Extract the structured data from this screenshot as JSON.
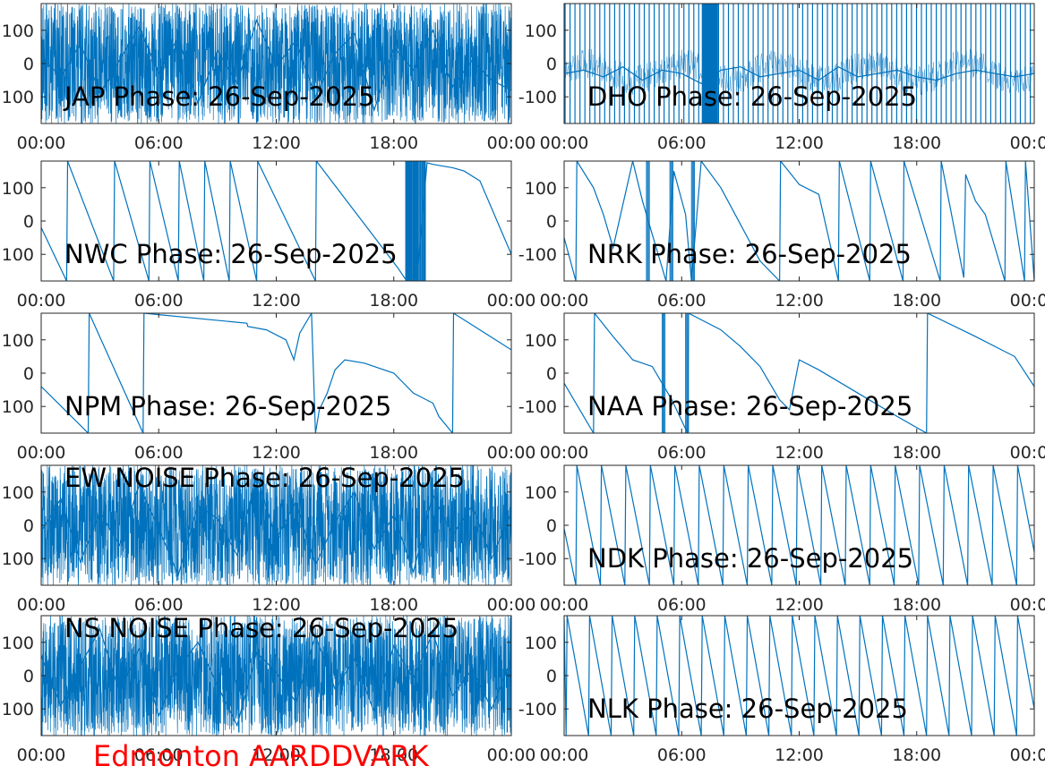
{
  "caption": {
    "text": "Edmonton AARDDVARK",
    "color": "#ff0000"
  },
  "style": {
    "line_color": "#0072bd",
    "axis_color": "#262626",
    "background": "#ffffff"
  },
  "chart_data": [
    {
      "type": "line",
      "title": "JAP Phase: 26-Sep-2025",
      "title_position": "bottom-left",
      "xlim": [
        "00:00",
        "24:00"
      ],
      "ylim": [
        -180,
        180
      ],
      "xticks": [
        "00:00",
        "06:00",
        "12:00",
        "18:00",
        "00:00"
      ],
      "yticks": [
        100,
        0,
        -100
      ],
      "ytick_labels": [
        "100",
        "0",
        "100"
      ],
      "series": [
        {
          "pattern": "noise",
          "wraps": 0,
          "x": [
            0,
            1,
            2,
            3,
            4,
            5,
            6,
            7,
            8,
            9,
            10,
            11,
            12,
            13,
            14,
            15,
            16,
            17,
            18,
            19,
            20,
            21,
            22,
            23,
            24
          ],
          "y": [
            20,
            -40,
            60,
            -90,
            10,
            110,
            -30,
            80,
            -120,
            40,
            -60,
            130,
            -10,
            70,
            -100,
            30,
            90,
            -140,
            50,
            -20,
            100,
            -70,
            10,
            -50,
            -80
          ]
        }
      ]
    },
    {
      "type": "line",
      "title": "DHO Phase: 26-Sep-2025",
      "title_position": "bottom-left",
      "xlim": [
        "00:00",
        "24:00"
      ],
      "ylim": [
        -180,
        180
      ],
      "xticks": [
        "00:00",
        "06:00",
        "12:00",
        "18:00",
        "00:00"
      ],
      "yticks": [
        100,
        0,
        -100
      ],
      "ytick_labels": [
        "100",
        "0",
        "-100"
      ],
      "series": [
        {
          "pattern": "fast-wrap",
          "wraps": 95,
          "x": [
            0,
            1,
            2,
            3,
            4,
            5,
            6,
            7,
            8,
            9,
            10,
            11,
            12,
            13,
            14,
            15,
            16,
            17,
            18,
            19,
            20,
            21,
            22,
            23,
            24
          ],
          "y": [
            -30,
            -20,
            -40,
            -10,
            -50,
            -20,
            -30,
            -60,
            -20,
            -10,
            -40,
            -30,
            -20,
            -50,
            -10,
            -40,
            -30,
            -20,
            -40,
            -50,
            -30,
            -20,
            -30,
            -40,
            -30
          ]
        }
      ]
    },
    {
      "type": "line",
      "title": "NWC Phase: 26-Sep-2025",
      "title_position": "bottom-left",
      "xlim": [
        "00:00",
        "24:00"
      ],
      "ylim": [
        -180,
        180
      ],
      "xticks": [
        "00:00",
        "06:00",
        "12:00",
        "18:00",
        "00:00"
      ],
      "yticks": [
        100,
        0,
        -100
      ],
      "ytick_labels": [
        "100",
        "0",
        "100"
      ],
      "series": [
        {
          "pattern": "sawtooth",
          "wraps": 0,
          "x": [
            0,
            1.3,
            1.35,
            3.7,
            3.75,
            5.5,
            5.55,
            7.0,
            7.05,
            8.3,
            8.35,
            9.6,
            9.65,
            11.0,
            11.05,
            14.0,
            14.05,
            18.2,
            18.6,
            19.2,
            19.7,
            20.0,
            21.0,
            21.6,
            22.4,
            24.0
          ],
          "y": [
            -20,
            -180,
            180,
            -180,
            180,
            -180,
            180,
            -180,
            180,
            -180,
            180,
            -180,
            180,
            -180,
            180,
            -180,
            180,
            -140,
            -175,
            -160,
            175,
            170,
            160,
            150,
            120,
            -100
          ]
        }
      ]
    },
    {
      "type": "line",
      "title": "NRK Phase: 26-Sep-2025",
      "title_position": "bottom-left",
      "xlim": [
        "00:00",
        "24:00"
      ],
      "ylim": [
        -180,
        180
      ],
      "xticks": [
        "00:00",
        "06:00",
        "12:00",
        "18:00",
        "00:00"
      ],
      "yticks": [
        100,
        0,
        -100
      ],
      "ytick_labels": [
        "100",
        "0",
        "-100"
      ],
      "series": [
        {
          "pattern": "sawtooth",
          "wraps": 0,
          "x": [
            0,
            0.6,
            0.65,
            1.5,
            2.0,
            2.5,
            3.5,
            4.0,
            4.5,
            5.2,
            5.6,
            6.2,
            6.5,
            7.0,
            8.0,
            9.0,
            10.0,
            11.0,
            11.05,
            12.0,
            13.0,
            14.0,
            14.05,
            15.6,
            15.65,
            17.3,
            17.35,
            19.2,
            19.25,
            20.4,
            20.5,
            21.0,
            21.5,
            22.5,
            22.55,
            23.5,
            23.55,
            24.0
          ],
          "y": [
            -50,
            -180,
            180,
            100,
            20,
            -80,
            180,
            60,
            -40,
            -180,
            150,
            20,
            -180,
            180,
            100,
            -10,
            -120,
            -180,
            180,
            110,
            80,
            -180,
            180,
            -180,
            180,
            -180,
            180,
            -180,
            180,
            -170,
            140,
            60,
            20,
            -180,
            180,
            -180,
            180,
            -180
          ]
        }
      ]
    },
    {
      "type": "line",
      "title": "NPM Phase: 26-Sep-2025",
      "title_position": "bottom-left",
      "xlim": [
        "00:00",
        "24:00"
      ],
      "ylim": [
        -180,
        180
      ],
      "xticks": [
        "00:00",
        "06:00",
        "12:00",
        "18:00",
        "00:00"
      ],
      "yticks": [
        100,
        0,
        -100
      ],
      "ytick_labels": [
        "100",
        "0",
        "100"
      ],
      "series": [
        {
          "pattern": "sawtooth",
          "wraps": 0,
          "x": [
            0,
            2.4,
            2.45,
            5.2,
            5.25,
            10.5,
            10.55,
            11.5,
            12.5,
            12.9,
            13.2,
            13.8,
            14.0,
            14.2,
            14.6,
            15.0,
            15.5,
            16.5,
            18.0,
            19.0,
            20.0,
            20.3,
            21.0,
            21.05,
            24.0
          ],
          "y": [
            -40,
            -180,
            180,
            -180,
            180,
            150,
            140,
            130,
            100,
            40,
            120,
            180,
            -180,
            -110,
            -60,
            10,
            40,
            30,
            0,
            -60,
            -90,
            -130,
            -180,
            180,
            70
          ]
        }
      ]
    },
    {
      "type": "line",
      "title": "NAA Phase: 26-Sep-2025",
      "title_position": "bottom-left",
      "xlim": [
        "00:00",
        "24:00"
      ],
      "ylim": [
        -180,
        180
      ],
      "xticks": [
        "00:00",
        "06:00",
        "12:00",
        "18:00",
        "00:00"
      ],
      "yticks": [
        100,
        0,
        -100
      ],
      "ytick_labels": [
        "100",
        "0",
        "-100"
      ],
      "series": [
        {
          "pattern": "sawtooth",
          "wraps": 0,
          "x": [
            0,
            1.5,
            1.55,
            2.5,
            3.5,
            4.5,
            5.5,
            6.3,
            6.35,
            8.0,
            9.0,
            10.0,
            11.0,
            11.5,
            12.0,
            13.0,
            15.0,
            17.0,
            18.5,
            18.55,
            21.0,
            23.0,
            24.0
          ],
          "y": [
            -30,
            -180,
            180,
            110,
            40,
            20,
            -80,
            -180,
            180,
            130,
            80,
            20,
            -80,
            -110,
            40,
            10,
            -60,
            -130,
            -180,
            180,
            110,
            50,
            -40
          ]
        }
      ]
    },
    {
      "type": "line",
      "title": "EW NOISE Phase: 26-Sep-2025",
      "title_position": "top-left",
      "xlim": [
        "00:00",
        "24:00"
      ],
      "ylim": [
        -180,
        180
      ],
      "xticks": [
        "00:00",
        "06:00",
        "12:00",
        "18:00",
        "00:00"
      ],
      "yticks": [
        100,
        0,
        -100
      ],
      "ytick_labels": [
        "100",
        "0",
        "100"
      ],
      "series": [
        {
          "pattern": "noise",
          "wraps": 0,
          "x": [
            0,
            1,
            2,
            3,
            4,
            5,
            6,
            7,
            8,
            9,
            10,
            11,
            12,
            13,
            14,
            15,
            16,
            17,
            18,
            19,
            20,
            21,
            22,
            23,
            24
          ],
          "y": [
            -20,
            80,
            -110,
            40,
            -60,
            120,
            -10,
            -150,
            60,
            20,
            -90,
            150,
            -40,
            70,
            -120,
            10,
            100,
            -70,
            30,
            -140,
            90,
            -30,
            60,
            -100,
            40
          ]
        }
      ]
    },
    {
      "type": "line",
      "title": "NDK Phase: 26-Sep-2025",
      "title_position": "bottom-left",
      "xlim": [
        "00:00",
        "24:00"
      ],
      "ylim": [
        -180,
        180
      ],
      "xticks": [
        "00:00",
        "06:00",
        "12:00",
        "18:00",
        "00:00"
      ],
      "yticks": [
        100,
        0,
        -100
      ],
      "ytick_labels": [
        "100",
        "0",
        "-100"
      ],
      "series": [
        {
          "pattern": "regular-sawtooth",
          "wraps": 20,
          "x": [
            0,
            0.6,
            0.65,
            1.85,
            1.9,
            3.1,
            3.15,
            4.35,
            4.4,
            5.6,
            5.65,
            6.85,
            6.9,
            8.1,
            8.15,
            9.35,
            9.4,
            10.6,
            10.65,
            11.85,
            11.9,
            13.1,
            13.15,
            14.35,
            14.4,
            15.6,
            15.65,
            16.85,
            16.9,
            18.1,
            18.15,
            19.35,
            19.4,
            20.6,
            20.65,
            21.85,
            21.9,
            23.1,
            23.15,
            24.0
          ],
          "y": [
            -10,
            -180,
            180,
            -180,
            180,
            -180,
            180,
            -180,
            180,
            -180,
            180,
            -180,
            180,
            -180,
            180,
            -180,
            180,
            -180,
            180,
            -180,
            180,
            -180,
            180,
            -180,
            180,
            -180,
            180,
            -180,
            180,
            -180,
            180,
            -180,
            180,
            -180,
            180,
            -180,
            180,
            -180,
            180,
            -80
          ]
        }
      ]
    },
    {
      "type": "line",
      "title": "NS NOISE Phase: 26-Sep-2025",
      "title_position": "top-left",
      "xlim": [
        "00:00",
        "24:00"
      ],
      "ylim": [
        -180,
        180
      ],
      "xticks": [
        "00:00",
        "06:00",
        "12:00",
        "18:00",
        "00:00"
      ],
      "yticks": [
        100,
        0,
        -100
      ],
      "ytick_labels": [
        "100",
        "0",
        "100"
      ],
      "series": [
        {
          "pattern": "noise",
          "wraps": 0,
          "x": [
            0,
            1,
            2,
            3,
            4,
            5,
            6,
            7,
            8,
            9,
            10,
            11,
            12,
            13,
            14,
            15,
            16,
            17,
            18,
            19,
            20,
            21,
            22,
            23,
            24
          ],
          "y": [
            60,
            -90,
            30,
            140,
            -50,
            80,
            -120,
            20,
            100,
            -30,
            -150,
            70,
            10,
            -80,
            120,
            -40,
            50,
            -110,
            90,
            -10,
            130,
            -60,
            20,
            -100,
            50
          ]
        }
      ]
    },
    {
      "type": "line",
      "title": "NLK Phase: 26-Sep-2025",
      "title_position": "bottom-left",
      "xlim": [
        "00:00",
        "24:00"
      ],
      "ylim": [
        -180,
        180
      ],
      "xticks": [
        "00:00",
        "06:00",
        "12:00",
        "18:00",
        "00:00"
      ],
      "yticks": [
        100,
        0,
        -100
      ],
      "ytick_labels": [
        "100",
        "0",
        "-100"
      ],
      "series": [
        {
          "pattern": "regular-sawtooth",
          "wraps": 21,
          "x": [
            0,
            0.1,
            0.15,
            1.25,
            1.3,
            2.4,
            2.45,
            3.55,
            3.6,
            4.7,
            4.75,
            5.85,
            5.9,
            7.0,
            7.05,
            8.15,
            8.2,
            9.3,
            9.35,
            10.45,
            10.5,
            11.6,
            11.65,
            12.75,
            12.8,
            13.9,
            13.95,
            15.05,
            15.1,
            16.2,
            16.25,
            17.35,
            17.4,
            18.5,
            18.55,
            19.65,
            19.7,
            20.8,
            20.85,
            21.95,
            22.0,
            23.1,
            23.15,
            24.0
          ],
          "y": [
            170,
            -180,
            180,
            -180,
            180,
            -180,
            180,
            -180,
            180,
            -180,
            180,
            -180,
            180,
            -180,
            180,
            -180,
            180,
            -180,
            180,
            -180,
            180,
            -180,
            180,
            -180,
            180,
            -180,
            180,
            -180,
            180,
            -180,
            180,
            -180,
            180,
            -180,
            180,
            -180,
            180,
            -180,
            180,
            -180,
            180,
            -180,
            180,
            -100
          ]
        }
      ]
    }
  ]
}
